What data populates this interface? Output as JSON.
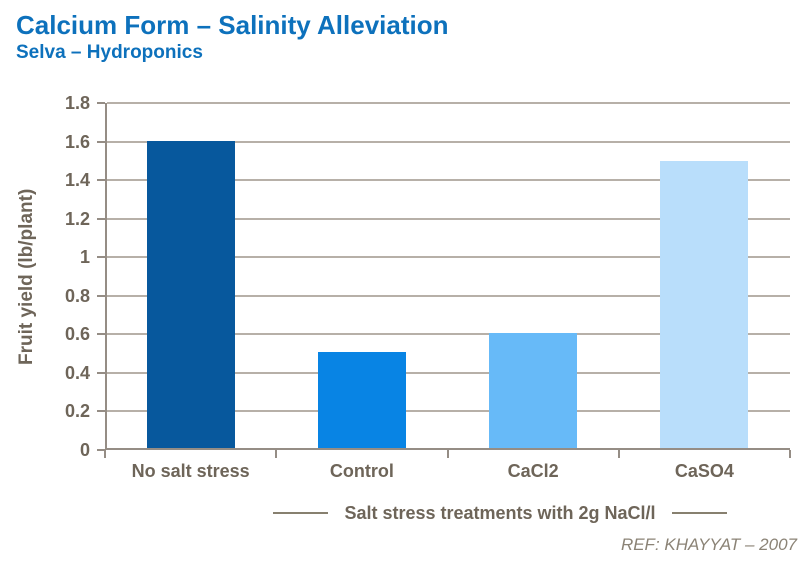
{
  "header": {
    "title": "Calcium Form – Salinity Alleviation",
    "subtitle": "Selva – Hydroponics"
  },
  "chart_data": {
    "type": "bar",
    "categories": [
      "No salt stress",
      "Control",
      "CaCl2",
      "CaSO4"
    ],
    "values": [
      1.6,
      0.5,
      0.6,
      1.5
    ],
    "bar_colors": [
      "#07589d",
      "#0884e4",
      "#67baf8",
      "#b9defb"
    ],
    "title": "Calcium Form – Salinity Alleviation",
    "subtitle": "Selva – Hydroponics",
    "xlabel": "Salt stress treatments with 2g NaCl/l",
    "ylabel": "Fruit yield (lb/plant)",
    "ylim": [
      0,
      1.8
    ],
    "ytick_step": 0.2,
    "ytick_labels": [
      "0",
      "0.2",
      "0.4",
      "0.6",
      "0.8",
      "1",
      "1.2",
      "1.4",
      "1.6",
      "1.8"
    ],
    "grid": true,
    "legend": false,
    "reference": "REF: KHAYYAT – 2007"
  },
  "colors": {
    "title_blue": "#0d71bc",
    "axis_text": "#6e6559",
    "gridline": "#b7b0a8",
    "axis_line": "#958d85"
  }
}
